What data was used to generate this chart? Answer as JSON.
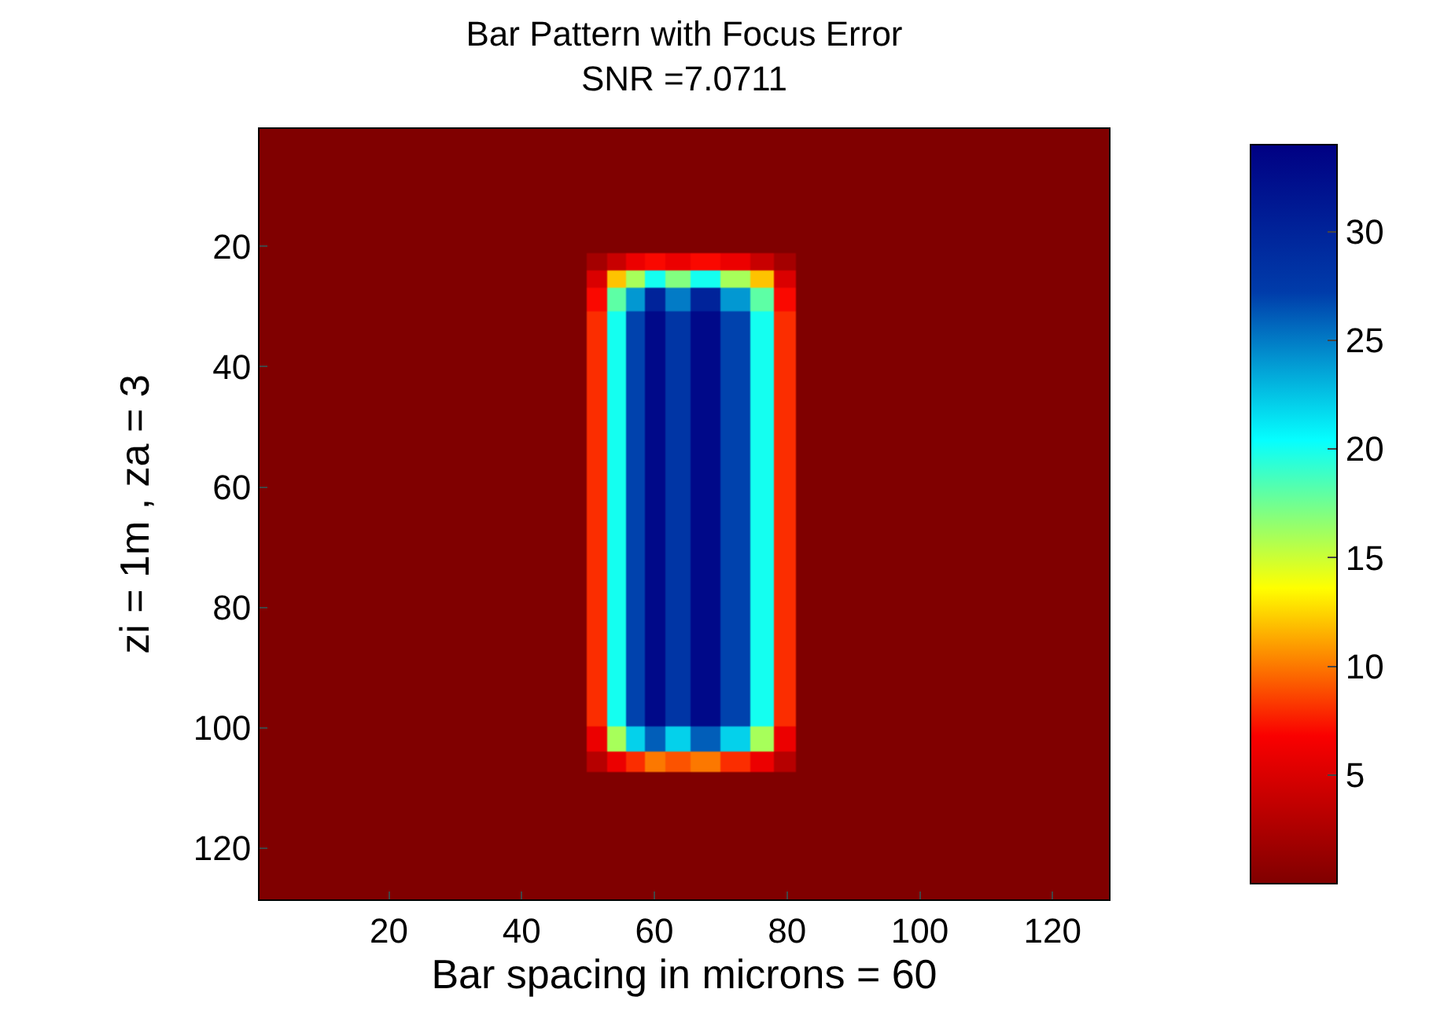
{
  "chart_data": {
    "type": "heatmap",
    "title": "Bar Pattern with Focus Error\nSNR =7.0711",
    "xlabel": "Bar spacing in microns = 60",
    "ylabel": "zi = 1m , za = 3",
    "x": [
      12,
      35,
      48,
      51.5,
      54.5,
      57,
      60,
      63.5,
      67.5,
      72.5,
      76.5,
      79.5,
      83,
      94,
      117
    ],
    "y": [
      7,
      20,
      22.5,
      25.5,
      28.5,
      33,
      50,
      65,
      80,
      97,
      102.5,
      105.5,
      109,
      122
    ],
    "cells": [
      [
        0,
        0,
        0,
        0,
        0,
        0,
        0,
        0,
        0,
        0,
        0,
        0,
        0,
        0,
        0
      ],
      [
        0,
        0,
        0,
        0,
        0,
        0,
        0,
        0,
        0,
        0,
        0,
        0,
        0,
        0,
        0
      ],
      [
        0,
        0,
        0,
        2,
        4,
        6,
        7,
        6,
        7,
        6,
        4,
        2,
        0,
        0,
        0
      ],
      [
        0,
        0,
        0,
        5,
        12,
        16,
        20,
        17,
        20,
        16,
        12,
        5,
        0,
        0,
        0
      ],
      [
        0,
        0,
        0,
        7,
        18,
        24,
        30,
        25,
        30,
        24,
        18,
        7,
        0,
        0,
        0
      ],
      [
        0,
        0,
        0,
        8,
        20,
        27,
        33,
        28,
        33,
        27,
        20,
        8,
        0,
        0,
        0
      ],
      [
        0,
        0,
        0,
        8,
        20,
        27,
        33,
        28,
        33,
        27,
        20,
        8,
        0,
        0,
        0
      ],
      [
        0,
        0,
        0,
        8,
        20,
        27,
        33,
        28,
        33,
        27,
        20,
        8,
        0,
        0,
        0
      ],
      [
        0,
        0,
        0,
        8,
        20,
        27,
        33,
        28,
        33,
        27,
        20,
        8,
        0,
        0,
        0
      ],
      [
        0,
        0,
        0,
        8,
        20,
        27,
        33,
        28,
        33,
        27,
        20,
        8,
        0,
        0,
        0
      ],
      [
        0,
        0,
        0,
        6,
        16,
        22,
        26,
        22,
        26,
        22,
        16,
        6,
        0,
        0,
        0
      ],
      [
        0,
        0,
        0,
        3,
        6,
        8,
        10,
        9,
        10,
        8,
        6,
        3,
        0,
        0,
        0
      ],
      [
        0,
        0,
        0,
        0,
        0,
        0,
        0,
        0,
        0,
        0,
        0,
        0,
        0,
        0,
        0
      ],
      [
        0,
        0,
        0,
        0,
        0,
        0,
        0,
        0,
        0,
        0,
        0,
        0,
        0,
        0,
        0
      ]
    ],
    "clim": [
      0,
      34
    ],
    "cticks": [
      5,
      10,
      15,
      20,
      25,
      30
    ],
    "xlim": [
      0.5,
      128.5
    ],
    "xticks": [
      20,
      40,
      60,
      80,
      100,
      120
    ],
    "ylim": [
      128.5,
      0.5
    ],
    "yticks": [
      20,
      40,
      60,
      80,
      100,
      120
    ]
  }
}
